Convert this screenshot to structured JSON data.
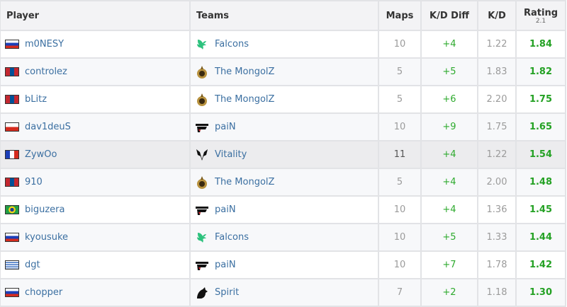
{
  "headers": {
    "player": "Player",
    "teams": "Teams",
    "maps": "Maps",
    "kd_diff": "K/D Diff",
    "kd": "K/D",
    "rating": "Rating",
    "rating_version": "2.1"
  },
  "colors": {
    "link": "#3b6fa1",
    "positive": "#2eaa2e",
    "rating": "#24a124",
    "highlight_row": "#ececee"
  },
  "rows": [
    {
      "flag": "ru",
      "player": "m0NESY",
      "team": "Falcons",
      "team_logo": "falcons",
      "maps": "10",
      "kd_diff": "+4",
      "kd": "1.22",
      "rating": "1.84"
    },
    {
      "flag": "mn",
      "player": "controlez",
      "team": "The MongolZ",
      "team_logo": "mongolz",
      "maps": "5",
      "kd_diff": "+5",
      "kd": "1.83",
      "rating": "1.82"
    },
    {
      "flag": "mn",
      "player": "bLitz",
      "team": "The MongolZ",
      "team_logo": "mongolz",
      "maps": "5",
      "kd_diff": "+6",
      "kd": "2.20",
      "rating": "1.75"
    },
    {
      "flag": "cl",
      "player": "dav1deuS",
      "team": "paiN",
      "team_logo": "pain",
      "maps": "10",
      "kd_diff": "+9",
      "kd": "1.75",
      "rating": "1.65"
    },
    {
      "flag": "fr",
      "player": "ZywOo",
      "team": "Vitality",
      "team_logo": "vitality",
      "maps": "11",
      "kd_diff": "+4",
      "kd": "1.22",
      "rating": "1.54",
      "highlighted": true
    },
    {
      "flag": "mn",
      "player": "910",
      "team": "The MongolZ",
      "team_logo": "mongolz",
      "maps": "5",
      "kd_diff": "+4",
      "kd": "2.00",
      "rating": "1.48"
    },
    {
      "flag": "br",
      "player": "biguzera",
      "team": "paiN",
      "team_logo": "pain",
      "maps": "10",
      "kd_diff": "+4",
      "kd": "1.36",
      "rating": "1.45"
    },
    {
      "flag": "ru",
      "player": "kyousuke",
      "team": "Falcons",
      "team_logo": "falcons",
      "maps": "10",
      "kd_diff": "+5",
      "kd": "1.33",
      "rating": "1.44"
    },
    {
      "flag": "uy",
      "player": "dgt",
      "team": "paiN",
      "team_logo": "pain",
      "maps": "10",
      "kd_diff": "+7",
      "kd": "1.78",
      "rating": "1.42"
    },
    {
      "flag": "ru",
      "player": "chopper",
      "team": "Spirit",
      "team_logo": "spirit",
      "maps": "7",
      "kd_diff": "+2",
      "kd": "1.18",
      "rating": "1.30"
    }
  ]
}
